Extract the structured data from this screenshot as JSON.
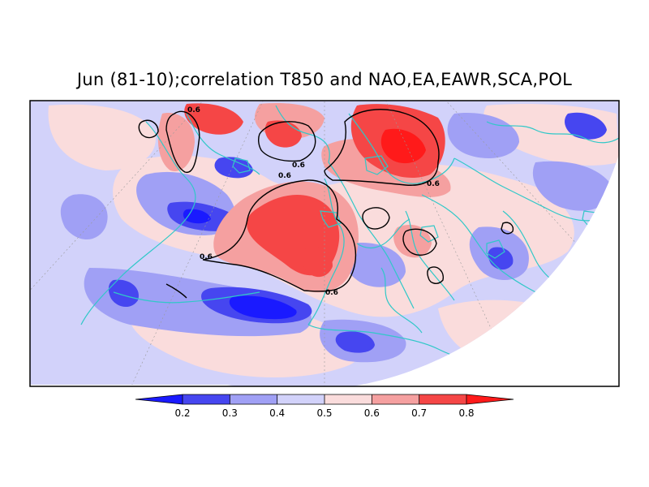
{
  "title": "Jun (81-10);correlation T850 and NAO,EA,EAWR,SCA,POL",
  "map": {
    "projection": "polar stereographic (northern hemisphere sector)",
    "coastline_color": "#30c8c8",
    "contour_color": "#000000",
    "contour_labels": [
      "0.6",
      "0.6",
      "0.6",
      "0.6",
      "0.6",
      "0.6"
    ]
  },
  "legend": {
    "colors": [
      "#1a1aff",
      "#4646f0",
      "#a0a0f5",
      "#d2d2fa",
      "#fadcdc",
      "#f5a0a0",
      "#f54646",
      "#ff1a1a"
    ],
    "ticks": [
      "0.2",
      "0.3",
      "0.4",
      "0.5",
      "0.6",
      "0.7",
      "0.8"
    ]
  }
}
